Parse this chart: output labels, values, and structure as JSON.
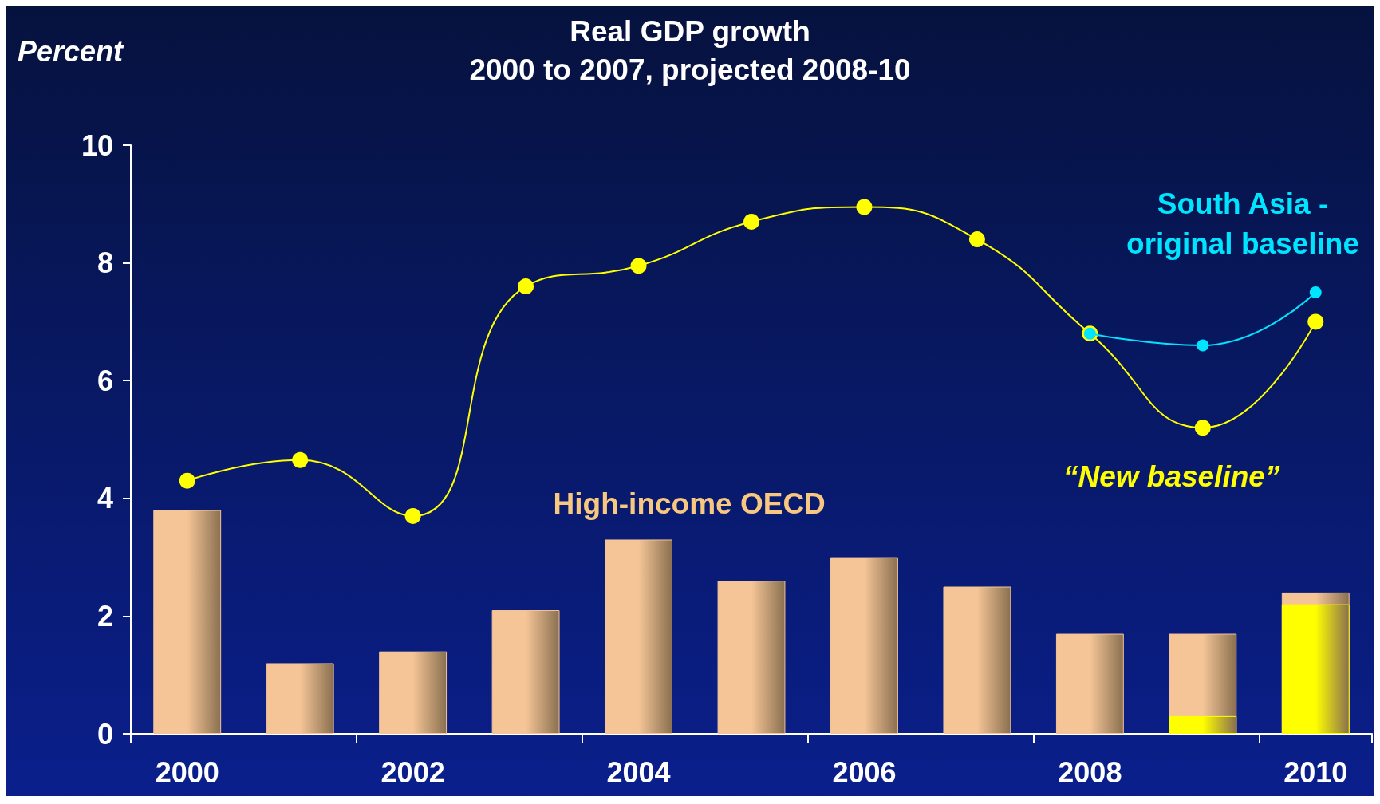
{
  "chart_data": {
    "type": "bar",
    "title": "Real GDP growth\n2000 to 2007, projected 2008-10",
    "ylabel": "Percent",
    "categories": [
      "2000",
      null,
      "2002",
      null,
      "2004",
      null,
      "2006",
      null,
      "2008",
      null,
      "2010"
    ],
    "series": [
      {
        "name": "High-income OECD",
        "color": "#f5c597",
        "values": [
          3.8,
          1.2,
          1.4,
          2.1,
          3.3,
          2.6,
          3.0,
          2.5,
          1.7,
          1.7,
          2.4
        ]
      },
      {
        "color": "#ffff00",
        "values": [
          null,
          null,
          null,
          null,
          null,
          null,
          null,
          null,
          null,
          0.3,
          2.2
        ]
      },
      {
        "type": "line",
        "name": "“New baseline”",
        "color": "#ffff00",
        "values": [
          4.3,
          4.65,
          3.7,
          7.6,
          7.95,
          8.7,
          8.95,
          8.4,
          6.8,
          5.2,
          7.0
        ]
      },
      {
        "type": "line",
        "name": "South Asia -\noriginal baseline",
        "color": "#00e5ff",
        "values": [
          null,
          null,
          null,
          null,
          null,
          null,
          null,
          null,
          6.8,
          6.6,
          7.5
        ]
      }
    ],
    "ylim": [
      0,
      10
    ],
    "yticks": [
      0,
      2,
      4,
      6,
      8,
      10
    ],
    "grid": false,
    "legend": false,
    "marker": "circle",
    "line_style": "solid"
  }
}
